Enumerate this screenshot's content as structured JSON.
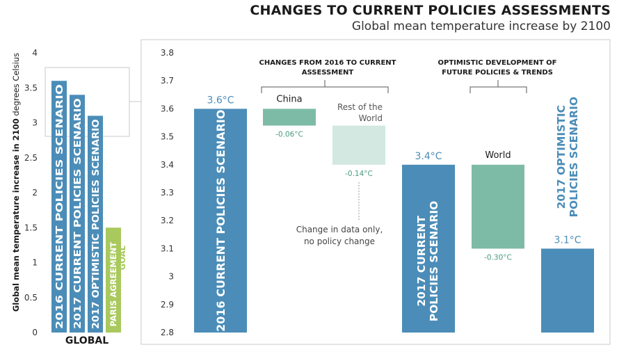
{
  "title": "CHANGES TO CURRENT POLICIES ASSESSMENTS",
  "subtitle": "Global mean temperature increase by 2100",
  "colors": {
    "blue": "#4b8db8",
    "green": "#7dbba7",
    "light_green": "#d2e8e0",
    "goal_green": "#a9c95e",
    "label_green": "#4a9a80",
    "frame": "#c8c8c8"
  },
  "chart_data": [
    {
      "type": "bar",
      "name": "global",
      "xlabel": "GLOBAL",
      "ylabel": "Global mean temperature increase in 2100 degrees Celsius",
      "ylabel_bold": "Global mean temperature increase in 2100",
      "ylabel_rest": " degrees Celsius",
      "ylim": [
        0,
        4
      ],
      "yticks": [
        "0",
        "0.5",
        "1",
        "1.5",
        "2",
        "2.5",
        "3",
        "3.5",
        "4"
      ],
      "categories": [
        "2016 CURRENT POLICIES SCENARIO",
        "2017 CURRENT POLICIES SCENARIO",
        "2017 OPTIMISTIC POLICIES SCENARIO",
        "PARIS AGREEMENT GOAL"
      ],
      "goal_label_lines": [
        "PARIS AGREEMENT",
        "GOAL"
      ],
      "values": [
        3.6,
        3.4,
        3.1,
        1.5
      ]
    },
    {
      "type": "waterfall",
      "name": "detail",
      "ylim": [
        2.8,
        3.8
      ],
      "yticks": [
        "2.8",
        "2.9",
        "3",
        "3.1",
        "3.2",
        "3.3",
        "3.4",
        "3.5",
        "3.6",
        "3.7",
        "3.8"
      ],
      "steps": [
        {
          "kind": "total",
          "label": "2016 CURRENT POLICIES SCENARIO",
          "value": 3.6,
          "value_label": "3.6°C"
        },
        {
          "kind": "delta",
          "label": "China",
          "from": 3.6,
          "to": 3.54,
          "change_label": "-0.06°C"
        },
        {
          "kind": "delta",
          "label": "Rest of the World",
          "from": 3.54,
          "to": 3.4,
          "change_label": "-0.14°C"
        },
        {
          "kind": "total",
          "label": "2017 CURRENT POLICIES SCENARIO",
          "label_lines": [
            "2017 CURRENT",
            "POLICIES SCENARIO"
          ],
          "value": 3.4,
          "value_label": "3.4°C"
        },
        {
          "kind": "delta",
          "label": "World",
          "from": 3.4,
          "to": 3.1,
          "change_label": "-0.30°C"
        },
        {
          "kind": "total",
          "label": "2017 OPTIMISTIC POLICIES SCENARIO",
          "label_lines": [
            "2017 OPTIMISTIC",
            "POLICIES SCENARIO"
          ],
          "value": 3.1,
          "value_label": "3.1°C"
        }
      ],
      "annotations": {
        "group1": "CHANGES FROM 2016 TO CURRENT ASSESSMENT",
        "group1_lines": [
          "CHANGES FROM 2016 TO CURRENT",
          "ASSESSMENT"
        ],
        "group2": "OPTIMISTIC DEVELOPMENT OF FUTURE POLICIES & TRENDS",
        "group2_lines": [
          "OPTIMISTIC DEVELOPMENT OF",
          "FUTURE POLICIES & TRENDS"
        ],
        "rest_label_lines": [
          "Rest of the",
          "World"
        ],
        "note": "Change in data only, no policy change",
        "note_lines": [
          "Change in data only,",
          "no policy change"
        ]
      }
    }
  ]
}
